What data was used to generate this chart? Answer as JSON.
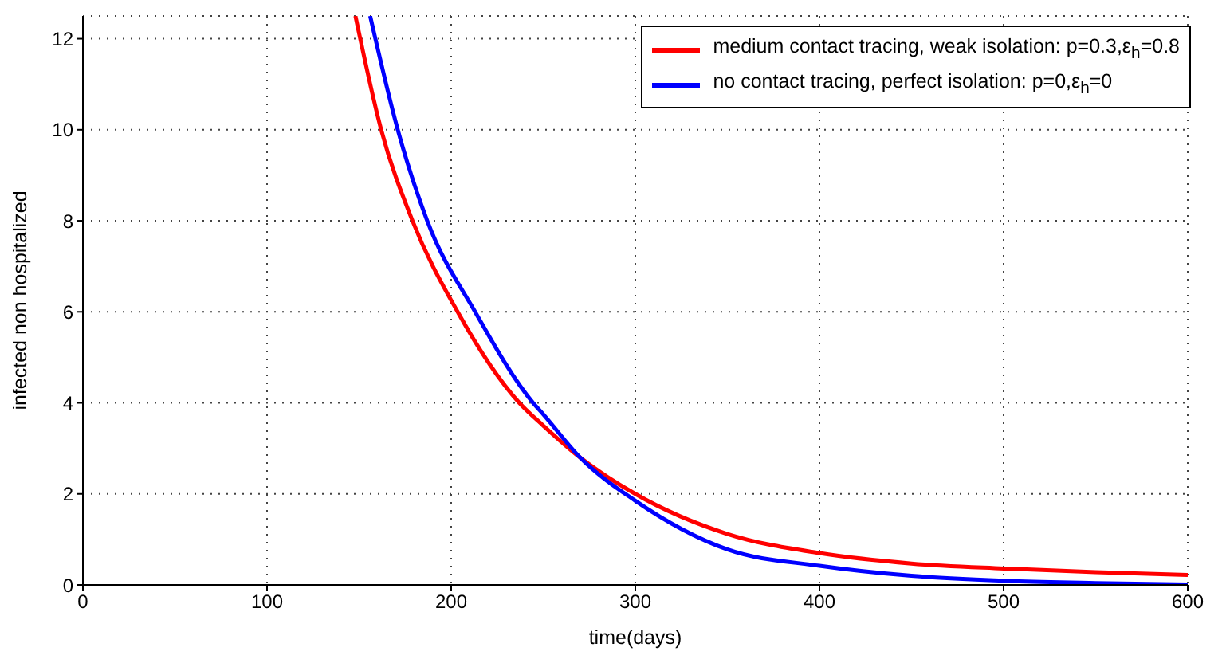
{
  "chart_data": {
    "type": "line",
    "xlabel": "time(days)",
    "ylabel": "infected non hospitalized",
    "xlim": [
      0,
      600
    ],
    "xticks": [
      0,
      100,
      200,
      300,
      400,
      500,
      600
    ],
    "ylim": [
      0,
      12.5
    ],
    "yticks": [
      0,
      2,
      4,
      6,
      8,
      10,
      12
    ],
    "grid": true,
    "legend": "top right",
    "line_style": "solid",
    "marker": "none",
    "series": [
      {
        "name": "medium contact tracing, weak isolation: p=0.3,ε$_{h}$=0.8",
        "color": "#ff0000",
        "x": [
          148,
          162,
          179,
          203.5,
          237,
          250,
          270,
          300,
          350,
          400,
          450,
          500,
          550,
          600
        ],
        "values": [
          12.5,
          10,
          8,
          6,
          4,
          3.5,
          2.8,
          2.0,
          1.12,
          0.7,
          0.47,
          0.36,
          0.28,
          0.22
        ]
      },
      {
        "name": "no contact tracing, perfect isolation: p=0,ε$_{h}$=0",
        "color": "#0000ff",
        "x": [
          156,
          171,
          187,
          213,
          244.5,
          250,
          270,
          300,
          350,
          400,
          450,
          500,
          550,
          600
        ],
        "values": [
          12.5,
          10,
          8,
          6,
          4,
          3.75,
          2.8,
          1.85,
          0.78,
          0.42,
          0.2,
          0.09,
          0.04,
          0.01
        ]
      }
    ]
  }
}
